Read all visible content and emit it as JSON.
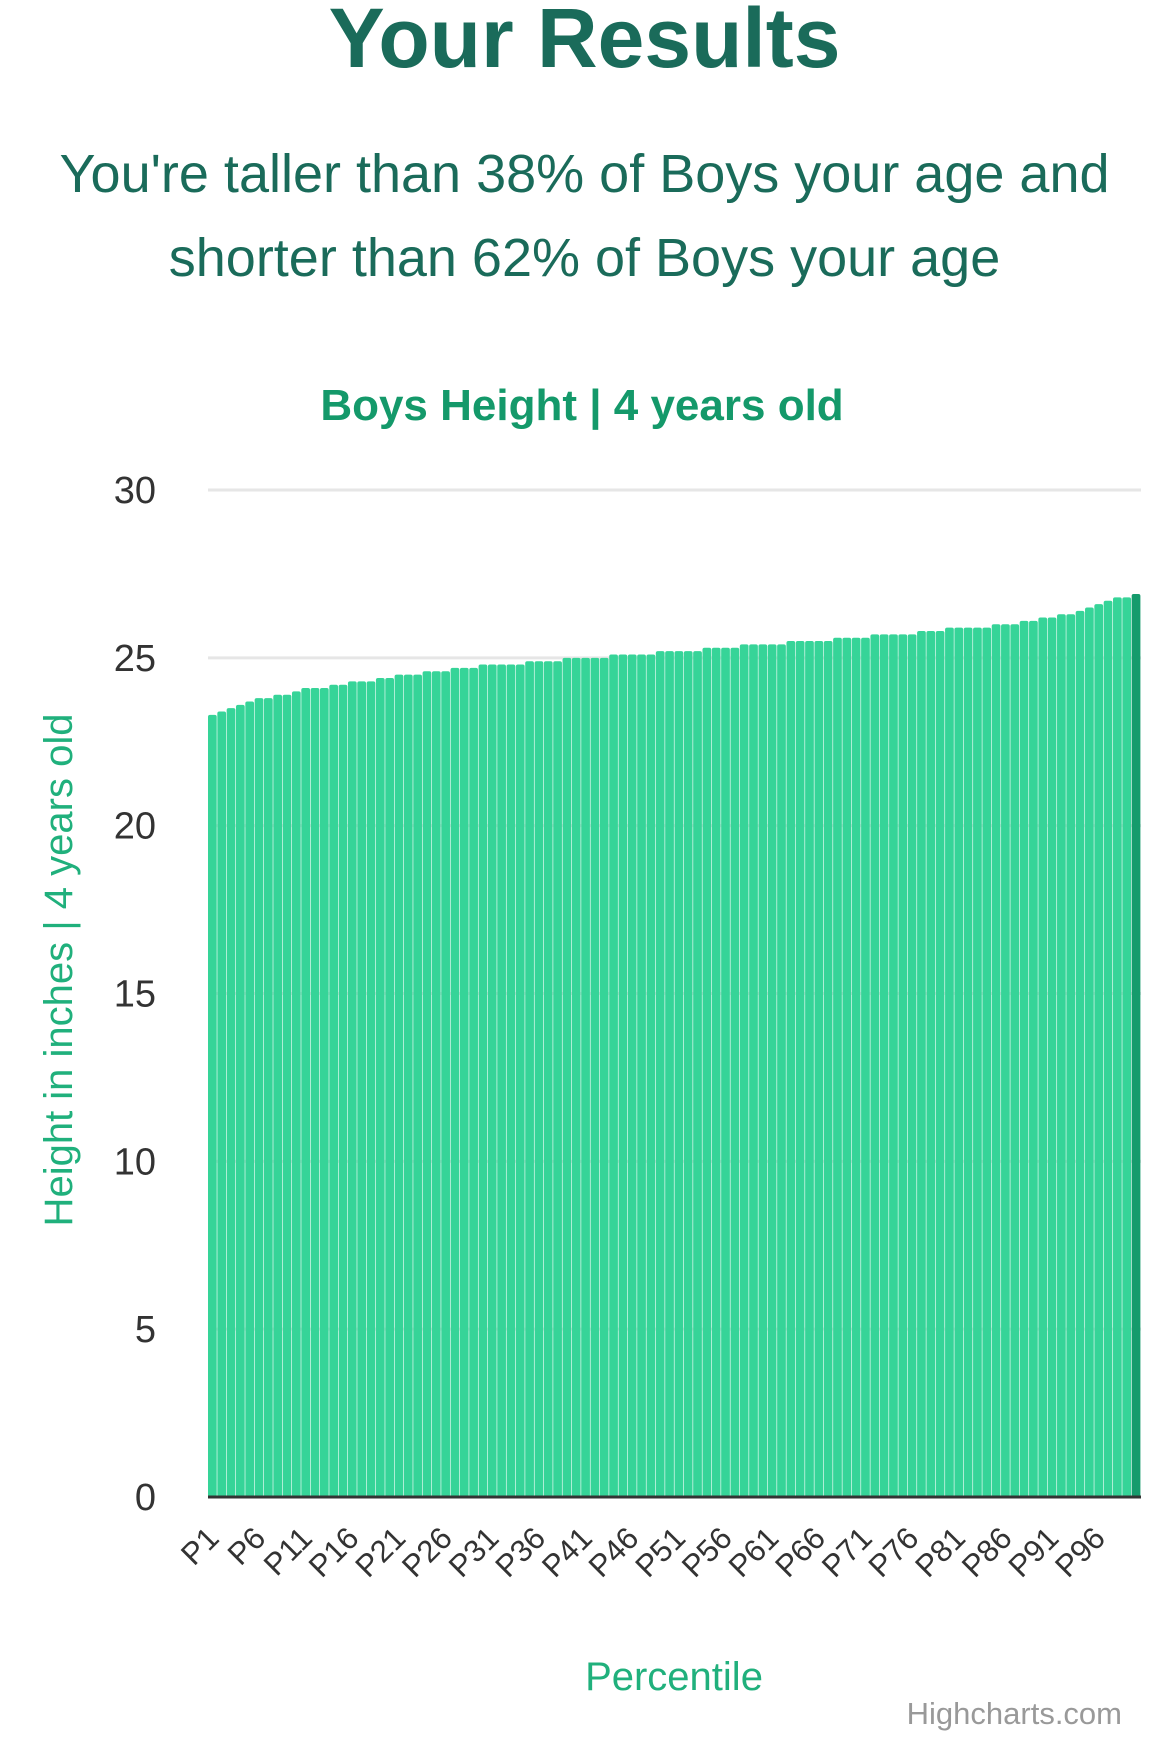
{
  "header": {
    "title": "Your Results",
    "summary_line1": "You're taller than 38% of Boys your age and",
    "summary_line2": "shorter than 62% of Boys your age"
  },
  "credits": "Highcharts.com",
  "colors": {
    "heading": "#1a6b5a",
    "chart_title": "#14996a",
    "bar": "#36d498",
    "bar_highlight": "#159b6c",
    "axis_title": "#20b07c",
    "tick_label": "#333333",
    "grid": "#e6e6e6",
    "credits": "#999999"
  },
  "chart_data": {
    "type": "bar",
    "title": "Boys Height | 4 years old",
    "xlabel": "Percentile",
    "ylabel": "Height in inches | 4 years old",
    "ylim": [
      0,
      30
    ],
    "yticks": [
      0,
      5,
      10,
      15,
      20,
      25,
      30
    ],
    "grid": true,
    "legend": false,
    "highlighted_category": "P100",
    "categories": [
      "P1",
      "P2",
      "P3",
      "P4",
      "P5",
      "P6",
      "P7",
      "P8",
      "P9",
      "P10",
      "P11",
      "P12",
      "P13",
      "P14",
      "P15",
      "P16",
      "P17",
      "P18",
      "P19",
      "P20",
      "P21",
      "P22",
      "P23",
      "P24",
      "P25",
      "P26",
      "P27",
      "P28",
      "P29",
      "P30",
      "P31",
      "P32",
      "P33",
      "P34",
      "P35",
      "P36",
      "P37",
      "P38",
      "P39",
      "P40",
      "P41",
      "P42",
      "P43",
      "P44",
      "P45",
      "P46",
      "P47",
      "P48",
      "P49",
      "P50",
      "P51",
      "P52",
      "P53",
      "P54",
      "P55",
      "P56",
      "P57",
      "P58",
      "P59",
      "P60",
      "P61",
      "P62",
      "P63",
      "P64",
      "P65",
      "P66",
      "P67",
      "P68",
      "P69",
      "P70",
      "P71",
      "P72",
      "P73",
      "P74",
      "P75",
      "P76",
      "P77",
      "P78",
      "P79",
      "P80",
      "P81",
      "P82",
      "P83",
      "P84",
      "P85",
      "P86",
      "P87",
      "P88",
      "P89",
      "P90",
      "P91",
      "P92",
      "P93",
      "P94",
      "P95",
      "P96",
      "P97",
      "P98",
      "P99",
      "P100"
    ],
    "visible_tick_labels": [
      "P1",
      "P6",
      "P11",
      "P16",
      "P21",
      "P26",
      "P31",
      "P36",
      "P41",
      "P46",
      "P51",
      "P56",
      "P61",
      "P66",
      "P71",
      "P76",
      "P81",
      "P86",
      "P91",
      "P96"
    ],
    "values": [
      23.3,
      23.4,
      23.5,
      23.6,
      23.7,
      23.8,
      23.8,
      23.9,
      23.9,
      24.0,
      24.1,
      24.1,
      24.1,
      24.2,
      24.2,
      24.3,
      24.3,
      24.3,
      24.4,
      24.4,
      24.5,
      24.5,
      24.5,
      24.6,
      24.6,
      24.6,
      24.7,
      24.7,
      24.7,
      24.8,
      24.8,
      24.8,
      24.8,
      24.8,
      24.9,
      24.9,
      24.9,
      24.9,
      25.0,
      25.0,
      25.0,
      25.0,
      25.0,
      25.1,
      25.1,
      25.1,
      25.1,
      25.1,
      25.2,
      25.2,
      25.2,
      25.2,
      25.2,
      25.3,
      25.3,
      25.3,
      25.3,
      25.4,
      25.4,
      25.4,
      25.4,
      25.4,
      25.5,
      25.5,
      25.5,
      25.5,
      25.5,
      25.6,
      25.6,
      25.6,
      25.6,
      25.7,
      25.7,
      25.7,
      25.7,
      25.7,
      25.8,
      25.8,
      25.8,
      25.9,
      25.9,
      25.9,
      25.9,
      25.9,
      26.0,
      26.0,
      26.0,
      26.1,
      26.1,
      26.2,
      26.2,
      26.3,
      26.3,
      26.4,
      26.5,
      26.6,
      26.7,
      26.8,
      26.8,
      26.9
    ]
  }
}
